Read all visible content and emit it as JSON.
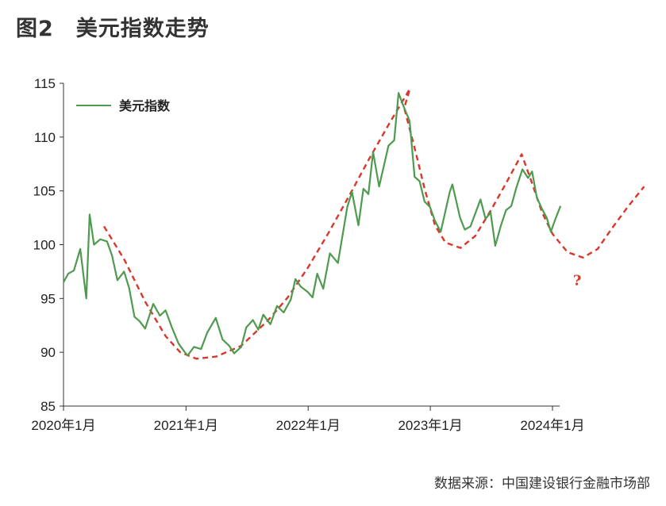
{
  "header": {
    "title": "图2　美元指数走势"
  },
  "footer": {
    "source": "数据来源：中国建设银行金融市场部"
  },
  "chart_data": {
    "type": "line",
    "title": "图2　美元指数走势",
    "xlabel": "",
    "ylabel": "",
    "ylim": [
      85,
      115
    ],
    "yticks": [
      85,
      90,
      95,
      100,
      105,
      110,
      115
    ],
    "xlim": [
      "2020-01-01",
      "2024-01-31"
    ],
    "xticks": [
      {
        "date": "2020-01-01",
        "label": "2020年1月"
      },
      {
        "date": "2021-01-01",
        "label": "2021年1月"
      },
      {
        "date": "2022-01-01",
        "label": "2022年1月"
      },
      {
        "date": "2023-01-01",
        "label": "2023年1月"
      },
      {
        "date": "2024-01-01",
        "label": "2024年1月"
      }
    ],
    "legend": {
      "position": "top-left",
      "entries": [
        "美元指数"
      ]
    },
    "colors": {
      "series": "#4e9a4e",
      "trend": "#d9372a",
      "axis": "#333333"
    },
    "series": [
      {
        "name": "美元指数",
        "points": [
          [
            "2020-01-01",
            96.5
          ],
          [
            "2020-01-15",
            97.3
          ],
          [
            "2020-02-01",
            97.6
          ],
          [
            "2020-02-20",
            99.6
          ],
          [
            "2020-03-09",
            95.0
          ],
          [
            "2020-03-19",
            102.8
          ],
          [
            "2020-04-01",
            100.0
          ],
          [
            "2020-04-20",
            100.5
          ],
          [
            "2020-05-10",
            100.3
          ],
          [
            "2020-05-25",
            99.0
          ],
          [
            "2020-06-10",
            96.7
          ],
          [
            "2020-06-30",
            97.5
          ],
          [
            "2020-07-15",
            96.0
          ],
          [
            "2020-07-31",
            93.3
          ],
          [
            "2020-08-15",
            92.9
          ],
          [
            "2020-09-01",
            92.2
          ],
          [
            "2020-09-25",
            94.5
          ],
          [
            "2020-10-15",
            93.4
          ],
          [
            "2020-11-01",
            93.9
          ],
          [
            "2020-11-20",
            92.3
          ],
          [
            "2020-12-10",
            90.8
          ],
          [
            "2020-12-31",
            89.9
          ],
          [
            "2021-01-06",
            89.7
          ],
          [
            "2021-01-25",
            90.5
          ],
          [
            "2021-02-15",
            90.3
          ],
          [
            "2021-03-05",
            91.8
          ],
          [
            "2021-03-31",
            93.2
          ],
          [
            "2021-04-20",
            91.2
          ],
          [
            "2021-05-10",
            90.6
          ],
          [
            "2021-05-25",
            89.9
          ],
          [
            "2021-06-15",
            90.5
          ],
          [
            "2021-06-30",
            92.3
          ],
          [
            "2021-07-20",
            93.0
          ],
          [
            "2021-08-05",
            92.1
          ],
          [
            "2021-08-20",
            93.5
          ],
          [
            "2021-09-10",
            92.6
          ],
          [
            "2021-09-30",
            94.3
          ],
          [
            "2021-10-20",
            93.7
          ],
          [
            "2021-11-10",
            94.9
          ],
          [
            "2021-11-24",
            96.8
          ],
          [
            "2021-12-10",
            96.1
          ],
          [
            "2021-12-31",
            95.6
          ],
          [
            "2022-01-14",
            95.1
          ],
          [
            "2022-01-28",
            97.3
          ],
          [
            "2022-02-15",
            95.9
          ],
          [
            "2022-03-07",
            99.2
          ],
          [
            "2022-03-31",
            98.3
          ],
          [
            "2022-04-28",
            103.5
          ],
          [
            "2022-05-12",
            104.9
          ],
          [
            "2022-05-31",
            101.8
          ],
          [
            "2022-06-15",
            105.2
          ],
          [
            "2022-06-30",
            104.7
          ],
          [
            "2022-07-14",
            108.6
          ],
          [
            "2022-08-01",
            105.4
          ],
          [
            "2022-08-29",
            109.2
          ],
          [
            "2022-09-15",
            109.7
          ],
          [
            "2022-09-28",
            114.1
          ],
          [
            "2022-10-10",
            113.1
          ],
          [
            "2022-10-31",
            111.5
          ],
          [
            "2022-11-15",
            106.3
          ],
          [
            "2022-11-30",
            105.9
          ],
          [
            "2022-12-15",
            104.0
          ],
          [
            "2022-12-31",
            103.5
          ],
          [
            "2023-01-15",
            102.2
          ],
          [
            "2023-02-01",
            101.2
          ],
          [
            "2023-02-28",
            104.9
          ],
          [
            "2023-03-08",
            105.6
          ],
          [
            "2023-03-31",
            102.5
          ],
          [
            "2023-04-14",
            101.4
          ],
          [
            "2023-05-01",
            101.7
          ],
          [
            "2023-05-31",
            104.2
          ],
          [
            "2023-06-15",
            102.4
          ],
          [
            "2023-06-30",
            103.0
          ],
          [
            "2023-07-14",
            99.9
          ],
          [
            "2023-07-31",
            101.8
          ],
          [
            "2023-08-15",
            103.2
          ],
          [
            "2023-08-31",
            103.6
          ],
          [
            "2023-09-15",
            105.3
          ],
          [
            "2023-10-03",
            107.0
          ],
          [
            "2023-10-20",
            106.2
          ],
          [
            "2023-11-01",
            106.8
          ],
          [
            "2023-11-15",
            104.4
          ],
          [
            "2023-12-01",
            103.3
          ],
          [
            "2023-12-15",
            102.5
          ],
          [
            "2023-12-27",
            101.2
          ],
          [
            "2024-01-10",
            102.4
          ],
          [
            "2024-01-25",
            103.6
          ]
        ]
      }
    ],
    "trend": {
      "style": "dashed",
      "points": [
        [
          "2020-05-01",
          101.7
        ],
        [
          "2020-07-01",
          98.6
        ],
        [
          "2020-09-01",
          94.7
        ],
        [
          "2020-11-01",
          91.5
        ],
        [
          "2020-12-15",
          90.0
        ],
        [
          "2021-02-01",
          89.4
        ],
        [
          "2021-04-01",
          89.6
        ],
        [
          "2021-06-15",
          90.6
        ],
        [
          "2021-09-01",
          92.9
        ],
        [
          "2021-11-01",
          95.1
        ],
        [
          "2022-01-01",
          97.9
        ],
        [
          "2022-03-01",
          101.0
        ],
        [
          "2022-05-01",
          104.4
        ],
        [
          "2022-07-01",
          107.9
        ],
        [
          "2022-09-01",
          111.3
        ],
        [
          "2022-11-01",
          114.5
        ],
        [
          "2022-10-15",
          112.7
        ],
        [
          "2022-11-15",
          109.0
        ],
        [
          "2022-12-15",
          105.2
        ],
        [
          "2023-01-15",
          101.8
        ],
        [
          "2023-02-15",
          100.2
        ],
        [
          "2023-04-01",
          99.7
        ],
        [
          "2023-05-15",
          100.8
        ],
        [
          "2023-07-01",
          103.2
        ],
        [
          "2023-08-15",
          105.7
        ],
        [
          "2023-10-01",
          108.4
        ],
        [
          "2023-11-01",
          105.7
        ],
        [
          "2023-12-01",
          103.0
        ],
        [
          "2024-01-01",
          101.0
        ],
        [
          "2024-02-15",
          99.3
        ],
        [
          "2024-04-01",
          98.8
        ],
        [
          "2024-05-15",
          99.6
        ],
        [
          "2024-07-01",
          101.7
        ],
        [
          "2024-08-15",
          103.6
        ],
        [
          "2024-10-01",
          105.4
        ]
      ]
    },
    "annotation": {
      "text": "?",
      "date": "2024-03-15",
      "value": 96.7
    }
  }
}
